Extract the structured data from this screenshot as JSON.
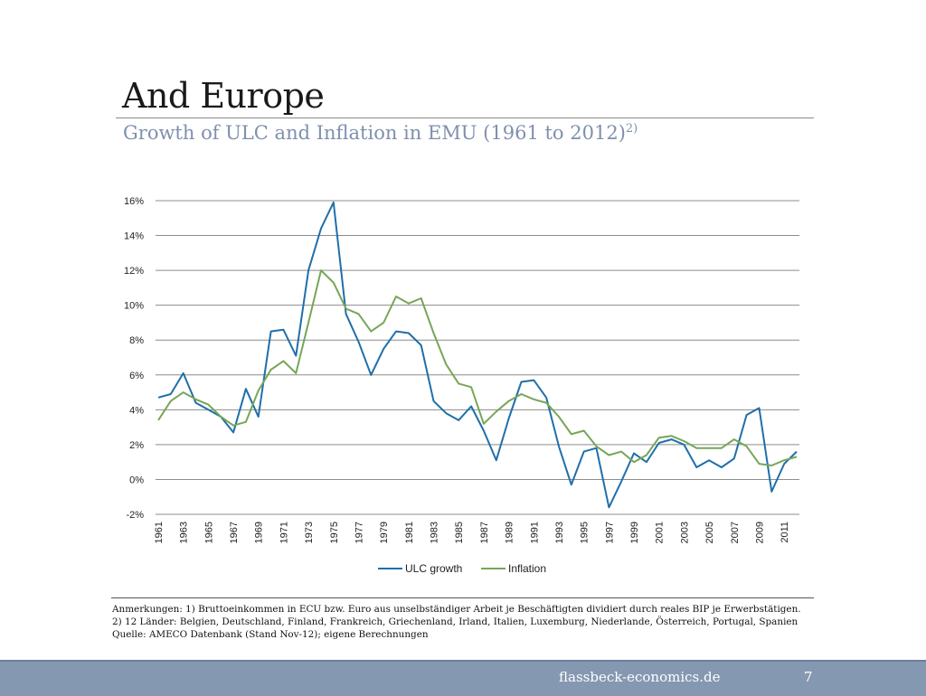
{
  "slide": {
    "title": "And Europe",
    "subtitle": "Growth of ULC and Inflation in EMU (1961 to 2012)",
    "subtitle_sup": "2)"
  },
  "notes": {
    "line1": "Anmerkungen: 1) Bruttoeinkommen in ECU bzw. Euro aus unselbständiger Arbeit je Beschäftigten dividiert durch reales BIP je Erwerbstätigen.",
    "line2": "2) 12 Länder: Belgien, Deutschland, Finland, Frankreich, Griechenland, Irland, Italien, Luxemburg, Niederlande, Österreich, Portugal, Spanien",
    "line3": "Quelle:  AMECO Datenbank (Stand Nov-12); eigene Berechnungen"
  },
  "footer": {
    "site": "flassbeck-economics.de",
    "page": "7"
  },
  "colors": {
    "ulc": "#1f6fab",
    "inflation": "#77a657",
    "grid": "#8c8c8c",
    "footer_bg": "#8598b2",
    "subtitle": "#7f90ae"
  },
  "chart_data": {
    "type": "line",
    "title": "Growth of ULC and Inflation in EMU (1961 to 2012)",
    "xlabel": "",
    "ylabel": "",
    "ylim": [
      -2,
      16
    ],
    "yticks": [
      -2,
      0,
      2,
      4,
      6,
      8,
      10,
      12,
      14,
      16
    ],
    "ytick_labels": [
      "-2%",
      "0%",
      "2%",
      "4%",
      "6%",
      "8%",
      "10%",
      "12%",
      "14%",
      "16%"
    ],
    "x": [
      1961,
      1962,
      1963,
      1964,
      1965,
      1966,
      1967,
      1968,
      1969,
      1970,
      1971,
      1972,
      1973,
      1974,
      1975,
      1976,
      1977,
      1978,
      1979,
      1980,
      1981,
      1982,
      1983,
      1984,
      1985,
      1986,
      1987,
      1988,
      1989,
      1990,
      1991,
      1992,
      1993,
      1994,
      1995,
      1996,
      1997,
      1998,
      1999,
      2000,
      2001,
      2002,
      2003,
      2004,
      2005,
      2006,
      2007,
      2008,
      2009,
      2010,
      2011,
      2012
    ],
    "xtick_labels": [
      "1961",
      "1963",
      "1965",
      "1967",
      "1969",
      "1971",
      "1973",
      "1975",
      "1977",
      "1979",
      "1981",
      "1983",
      "1985",
      "1987",
      "1989",
      "1991",
      "1993",
      "1995",
      "1997",
      "1999",
      "2001",
      "2003",
      "2005",
      "2007",
      "2009",
      "2011"
    ],
    "grid": true,
    "legend_position": "bottom-center",
    "series": [
      {
        "name": "ULC growth",
        "color": "#1f6fab",
        "values": [
          4.7,
          4.9,
          6.1,
          4.4,
          4.0,
          3.6,
          2.7,
          5.2,
          3.6,
          8.5,
          8.6,
          7.1,
          12.0,
          14.4,
          15.9,
          9.5,
          7.9,
          6.0,
          7.5,
          8.5,
          8.4,
          7.7,
          4.5,
          3.8,
          3.4,
          4.2,
          2.8,
          1.1,
          3.5,
          5.6,
          5.7,
          4.7,
          1.9,
          -0.3,
          1.6,
          1.8,
          -1.6,
          -0.1,
          1.5,
          1.0,
          2.1,
          2.3,
          2.0,
          0.7,
          1.1,
          0.7,
          1.2,
          3.7,
          4.1,
          -0.7,
          0.9,
          1.6
        ]
      },
      {
        "name": "Inflation",
        "color": "#77a657",
        "values": [
          3.4,
          4.5,
          5.0,
          4.6,
          4.3,
          3.6,
          3.1,
          3.3,
          5.1,
          6.3,
          6.8,
          6.1,
          9.0,
          12.0,
          11.3,
          9.8,
          9.5,
          8.5,
          9.0,
          10.5,
          10.1,
          10.4,
          8.4,
          6.6,
          5.5,
          5.3,
          3.2,
          3.9,
          4.5,
          4.9,
          4.6,
          4.4,
          3.6,
          2.6,
          2.8,
          1.9,
          1.4,
          1.6,
          1.0,
          1.4,
          2.4,
          2.5,
          2.2,
          1.8,
          1.8,
          1.8,
          2.3,
          1.9,
          0.9,
          0.8,
          1.1,
          1.3
        ]
      }
    ]
  }
}
